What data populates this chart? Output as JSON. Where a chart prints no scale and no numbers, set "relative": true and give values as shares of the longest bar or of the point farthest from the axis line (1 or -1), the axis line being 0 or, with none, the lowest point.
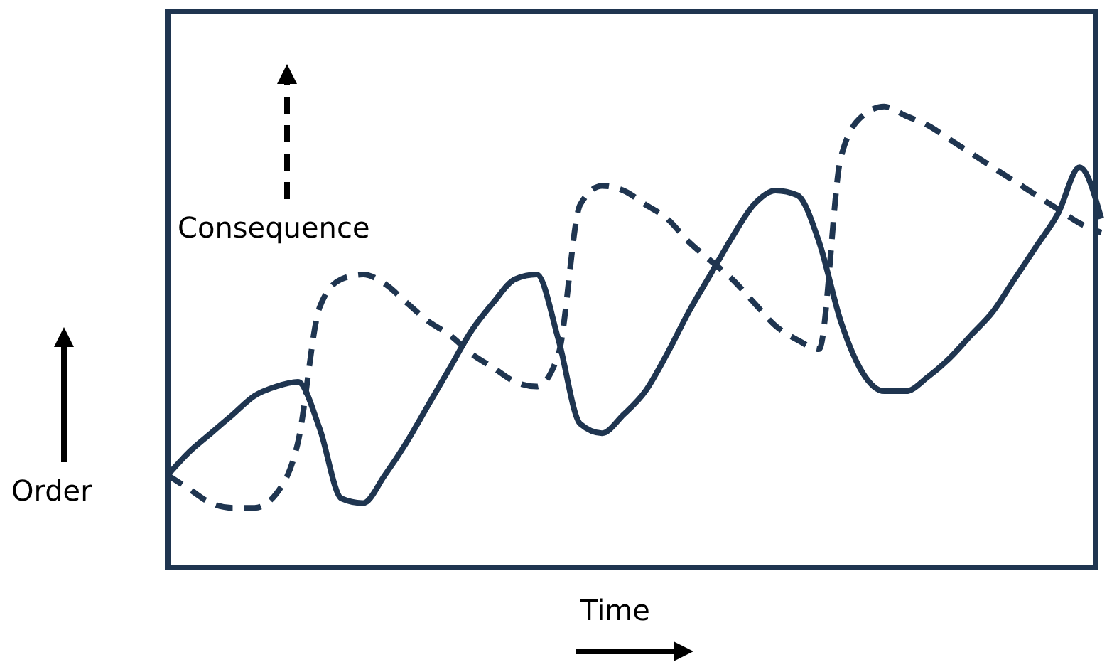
{
  "chart_data": {
    "type": "line",
    "relative": true,
    "xlabel": "Time",
    "legend": "left",
    "marker": "none",
    "categories": [
      null,
      null,
      null,
      null,
      null,
      null,
      null,
      null,
      null,
      null,
      null,
      null,
      null,
      null,
      null,
      null,
      null,
      null,
      null,
      null,
      null,
      null,
      null,
      null,
      null,
      null,
      null,
      null,
      null,
      null,
      null,
      null,
      null,
      null,
      null,
      null,
      null,
      null,
      null,
      null,
      null,
      null,
      null,
      null
    ],
    "series": [
      {
        "name": "Order",
        "color": "#1f3550",
        "line_style": "solid",
        "values": [
          0.21,
          0.26,
          0.3,
          0.34,
          0.38,
          0.4,
          0.41,
          0.31,
          0.16,
          0.15,
          0.21,
          0.28,
          0.36,
          0.44,
          0.52,
          0.58,
          0.63,
          0.64,
          0.5,
          0.32,
          0.3,
          0.34,
          0.39,
          0.47,
          0.56,
          0.64,
          0.72,
          0.79,
          0.82,
          0.81,
          0.71,
          0.54,
          0.43,
          0.39,
          0.39,
          0.42,
          0.46,
          0.51,
          0.56,
          0.63,
          0.7,
          0.77,
          0.87,
          0.76
        ]
      },
      {
        "name": "Consequence",
        "color": "#1f3550",
        "line_style": "dashed",
        "values": [
          0.21,
          0.18,
          0.15,
          0.14,
          0.14,
          0.17,
          0.28,
          0.57,
          0.63,
          0.64,
          0.62,
          0.58,
          0.54,
          0.51,
          0.47,
          0.44,
          0.41,
          0.4,
          0.47,
          0.79,
          0.83,
          0.82,
          0.79,
          0.76,
          0.71,
          0.67,
          0.63,
          0.58,
          0.53,
          0.5,
          0.48,
          0.89,
          0.98,
          1,
          0.98,
          0.96,
          0.93,
          0.9,
          0.87,
          0.84,
          0.81,
          0.78,
          0.75,
          0.73
        ]
      }
    ]
  }
}
